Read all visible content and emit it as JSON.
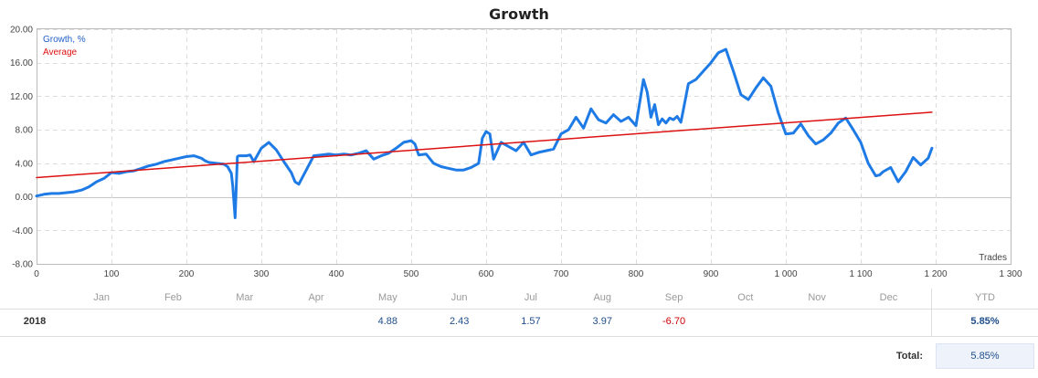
{
  "chart_data": {
    "type": "line",
    "title": "Growth",
    "xlabel": "Trades",
    "ylabel": "",
    "xlim": [
      0,
      1300
    ],
    "ylim": [
      -8,
      20
    ],
    "yticks": [
      "20.00",
      "16.00",
      "12.00",
      "8.00",
      "4.00",
      "0.00",
      "-4.00",
      "-8.00"
    ],
    "ytick_values": [
      20,
      16,
      12,
      8,
      4,
      0,
      -4,
      -8
    ],
    "xticks": [
      "0",
      "100",
      "200",
      "300",
      "400",
      "500",
      "600",
      "700",
      "800",
      "900",
      "1 000",
      "1 100",
      "1 200",
      "1 300"
    ],
    "xtick_values": [
      0,
      100,
      200,
      300,
      400,
      500,
      600,
      700,
      800,
      900,
      1000,
      1100,
      1200,
      1300
    ],
    "grid": true,
    "legend": "top-left",
    "series": [
      {
        "name": "Growth, %",
        "color": "#1e7be6",
        "x": [
          0,
          10,
          20,
          30,
          40,
          50,
          60,
          70,
          80,
          90,
          100,
          110,
          120,
          130,
          140,
          150,
          160,
          170,
          180,
          190,
          200,
          210,
          220,
          225,
          230,
          240,
          250,
          255,
          260,
          262,
          265,
          268,
          270,
          280,
          285,
          290,
          300,
          310,
          320,
          330,
          340,
          345,
          350,
          360,
          370,
          380,
          390,
          400,
          410,
          420,
          430,
          440,
          450,
          460,
          470,
          480,
          490,
          500,
          505,
          510,
          520,
          530,
          540,
          550,
          560,
          570,
          580,
          590,
          595,
          600,
          605,
          610,
          620,
          630,
          640,
          650,
          660,
          670,
          680,
          690,
          700,
          710,
          720,
          730,
          740,
          750,
          760,
          770,
          780,
          790,
          800,
          810,
          815,
          820,
          825,
          830,
          835,
          840,
          845,
          850,
          855,
          860,
          870,
          880,
          890,
          900,
          910,
          920,
          930,
          940,
          950,
          960,
          970,
          980,
          990,
          1000,
          1010,
          1020,
          1030,
          1040,
          1050,
          1060,
          1070,
          1080,
          1090,
          1100,
          1110,
          1120,
          1125,
          1130,
          1140,
          1150,
          1155,
          1160,
          1170,
          1180,
          1190,
          1195
        ],
        "y": [
          0.1,
          0.3,
          0.4,
          0.4,
          0.5,
          0.6,
          0.8,
          1.2,
          1.8,
          2.2,
          2.9,
          2.8,
          3.0,
          3.1,
          3.4,
          3.7,
          3.9,
          4.2,
          4.4,
          4.6,
          4.8,
          4.9,
          4.6,
          4.3,
          4.1,
          4.0,
          3.9,
          3.6,
          2.8,
          1.2,
          -2.5,
          4.8,
          4.9,
          4.9,
          5.0,
          4.2,
          5.8,
          6.5,
          5.6,
          4.2,
          2.9,
          1.8,
          1.5,
          3.2,
          4.9,
          5.0,
          5.1,
          5.0,
          5.1,
          5.0,
          5.2,
          5.5,
          4.5,
          4.9,
          5.2,
          5.8,
          6.5,
          6.7,
          6.3,
          5.0,
          5.1,
          4.0,
          3.6,
          3.4,
          3.2,
          3.2,
          3.5,
          4.0,
          7.0,
          7.8,
          7.5,
          4.5,
          6.5,
          6.0,
          5.5,
          6.5,
          5.0,
          5.3,
          5.5,
          5.7,
          7.5,
          8.0,
          9.5,
          8.2,
          10.5,
          9.2,
          8.8,
          9.8,
          9.0,
          9.5,
          8.5,
          14.0,
          12.5,
          9.5,
          11.0,
          8.6,
          9.3,
          8.8,
          9.4,
          9.2,
          9.6,
          8.9,
          13.5,
          14.0,
          15.0,
          16.0,
          17.2,
          17.6,
          15.0,
          12.2,
          11.6,
          13.0,
          14.2,
          13.2,
          10.0,
          7.5,
          7.6,
          8.7,
          7.3,
          6.3,
          6.8,
          7.6,
          8.8,
          9.4,
          8.0,
          6.5,
          4.0,
          2.5,
          2.6,
          3.0,
          3.5,
          1.8,
          2.4,
          3.0,
          4.7,
          3.8,
          4.6,
          5.8
        ]
      },
      {
        "name": "Average",
        "color": "#dd1111",
        "x": [
          0,
          1195
        ],
        "y": [
          2.3,
          10.1
        ]
      }
    ]
  },
  "table": {
    "months": [
      "Jan",
      "Feb",
      "Mar",
      "Apr",
      "May",
      "Jun",
      "Jul",
      "Aug",
      "Sep",
      "Oct",
      "Nov",
      "Dec"
    ],
    "ytd_label": "YTD",
    "year": "2018",
    "values": [
      "",
      "",
      "",
      "",
      "4.88",
      "2.43",
      "1.57",
      "3.97",
      "-6.70",
      "",
      "",
      ""
    ],
    "ytd_value": "5.85%",
    "total_label": "Total:",
    "total_value": "5.85%"
  }
}
